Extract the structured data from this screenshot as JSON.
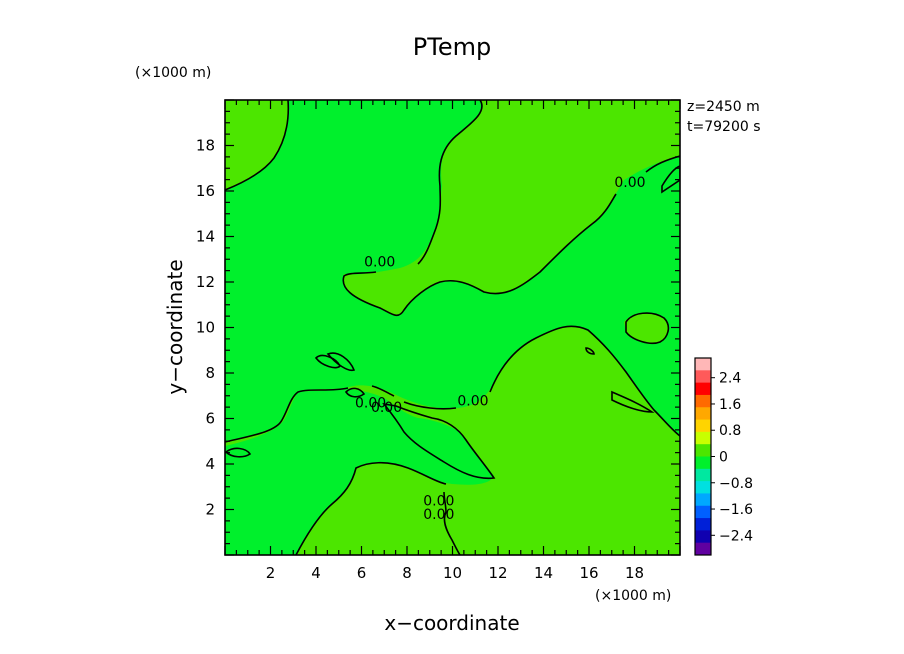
{
  "chart_data": {
    "type": "heatmap",
    "title": "PTemp",
    "xlabel": "x−coordinate",
    "ylabel": "y−coordinate",
    "x_unit": "(×1000 m)",
    "y_unit": "(×1000 m)",
    "xlim": [
      0,
      20
    ],
    "ylim": [
      0,
      20
    ],
    "x_ticks": [
      2,
      4,
      6,
      8,
      10,
      12,
      14,
      16,
      18
    ],
    "y_ticks": [
      2,
      4,
      6,
      8,
      10,
      12,
      14,
      16,
      18
    ],
    "x_tick_labels": [
      "2",
      "4",
      "6",
      "8",
      "10",
      "12",
      "14",
      "16",
      "18"
    ],
    "y_tick_labels": [
      "2",
      "4",
      "6",
      "8",
      "10",
      "12",
      "14",
      "16",
      "18"
    ],
    "info_lines": [
      "z=2450 m",
      "t=79200 s"
    ],
    "field_fill_colors": {
      "negative_range": "#00f02c",
      "positive_range": "#4ce600"
    },
    "contour_level_label": "0.00",
    "contour_label_positions": [
      [
        6.8,
        12.9
      ],
      [
        6.4,
        6.7
      ],
      [
        7.1,
        6.5
      ],
      [
        10.9,
        6.8
      ],
      [
        17.8,
        16.4
      ],
      [
        9.4,
        2.4
      ],
      [
        9.4,
        1.8
      ]
    ],
    "contour_color": "#000000",
    "colorbar": {
      "tick_values": [
        2.4,
        1.6,
        0.8,
        0,
        -0.8,
        -1.6,
        -2.4
      ],
      "tick_labels": [
        "2.4",
        "1.6",
        "0.8",
        "0",
        "−0.8",
        "−1.6",
        "−2.4"
      ],
      "range": [
        -3.0,
        3.0
      ],
      "colors_top_to_bottom": [
        "#ffb7b7",
        "#ff5a5a",
        "#ff0000",
        "#ff6a00",
        "#ffa800",
        "#ffd400",
        "#c8ff00",
        "#4ce600",
        "#00f02c",
        "#00e8a0",
        "#00e0e0",
        "#00a8ff",
        "#0060ff",
        "#0020d8",
        "#1000b0",
        "#6000a0"
      ]
    }
  }
}
